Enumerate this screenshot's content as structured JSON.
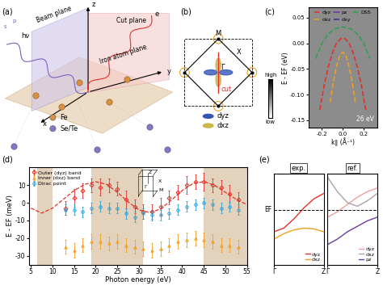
{
  "panel_a": {
    "label": "(a)",
    "axes": [
      "x",
      "y",
      "z"
    ],
    "beam_plane": "Beam plane",
    "cut_plane": "Cut plane",
    "photon": "hν",
    "electron": "e",
    "pol_s": "s",
    "pol_p": "p",
    "iron_plane": "Iron atom plane",
    "atoms": [
      {
        "name": "Fe",
        "color": "#d9913f"
      },
      {
        "name": "Se/Te",
        "color": "#8677c4"
      }
    ]
  },
  "panel_b": {
    "label": "(b)",
    "points": [
      "M",
      "X",
      "Γ"
    ],
    "cut": "cut",
    "orbitals": [
      {
        "name": "dyz",
        "color": "#3355b5"
      },
      {
        "name": "dxz",
        "color": "#c9b548"
      }
    ]
  },
  "chart_data": [
    {
      "label": "(c)",
      "type": "line",
      "x_label": "k∥ (Å⁻¹)",
      "y_label": "E - EF (eV)",
      "xlim": [
        -0.33,
        0.33
      ],
      "ylim": [
        -0.165,
        0.07
      ],
      "xticks": [
        {
          "value": -0.2,
          "label": "-0.2"
        },
        {
          "value": 0.0,
          "label": "0.0"
        },
        {
          "value": 0.2,
          "label": "0.2"
        }
      ],
      "yticks": [
        {
          "value": 0.05,
          "label": "0.05"
        },
        {
          "value": 0.0,
          "label": "0.00"
        },
        {
          "value": -0.05,
          "label": "-0.05"
        },
        {
          "value": -0.1,
          "label": "-0.10"
        },
        {
          "value": -0.15,
          "label": "-0.15"
        }
      ],
      "annotation": "26 eV",
      "colorbar": {
        "labels": [
          "high",
          "low"
        ]
      },
      "legend": "upper center",
      "series": [
        {
          "name": "dyz",
          "color": "#e0322a",
          "line_style": "dashed",
          "x": [
            -0.22,
            -0.18,
            -0.14,
            -0.1,
            -0.06,
            -0.02,
            0.0,
            0.02,
            0.06,
            0.1,
            0.14,
            0.18,
            0.22
          ],
          "values": [
            -0.13,
            -0.084,
            -0.047,
            -0.019,
            0.0,
            0.009,
            0.01,
            0.009,
            0.0,
            -0.019,
            -0.047,
            -0.084,
            -0.13
          ]
        },
        {
          "name": "dxz",
          "color": "#f0a020",
          "line_style": "dashed",
          "x": [
            -0.12,
            -0.09,
            -0.06,
            -0.03,
            0.0,
            0.03,
            0.06,
            0.09,
            0.12
          ],
          "values": [
            -0.115,
            -0.075,
            -0.045,
            -0.024,
            -0.017,
            -0.024,
            -0.045,
            -0.075,
            -0.115
          ]
        },
        {
          "name": "pz",
          "color": "#6a3d9a",
          "line_style": "solid",
          "x": [],
          "values": []
        },
        {
          "name": "dxy",
          "color": "#2040a0",
          "line_style": "dashdot",
          "x": [],
          "values": []
        },
        {
          "name": "DSS",
          "color": "#30a050",
          "line_style": "dashed",
          "x": [
            -0.26,
            -0.2,
            -0.14,
            -0.08,
            0.0,
            0.08,
            0.14,
            0.2,
            0.26
          ],
          "values": [
            -0.03,
            0.0,
            0.018,
            0.028,
            0.032,
            0.028,
            0.018,
            0.0,
            -0.03
          ]
        }
      ]
    },
    {
      "label": "(d)",
      "type": "scatter",
      "x_label": "Photon energy (eV)",
      "y_label": "E - EF (meV)",
      "xlim": [
        4.5,
        55
      ],
      "ylim": [
        -35,
        20
      ],
      "xticks": [
        5,
        10,
        15,
        20,
        25,
        30,
        35,
        40,
        45,
        50,
        55
      ],
      "yticks": [
        -30,
        -20,
        -10,
        0,
        10
      ],
      "legend": "upper left",
      "shaded_ranges": [
        [
          6.5,
          10
        ],
        [
          19,
          31
        ],
        [
          45,
          55
        ]
      ],
      "shade_color": "#e3d3bd",
      "inset_labels": [
        "Γ",
        "Z",
        "M",
        "X"
      ],
      "fit": {
        "color": "#e0322a",
        "line_style": "dashed",
        "x": [
          5,
          7.5,
          10,
          12.5,
          15,
          17.5,
          20,
          22.5,
          25,
          27.5,
          30,
          32.5,
          35,
          37.5,
          40,
          42.5,
          45,
          47.5,
          50,
          52.5,
          55
        ],
        "values": [
          -3,
          -5.8,
          -3,
          2,
          7,
          10.5,
          12,
          10.5,
          6,
          0.5,
          -4,
          -5.5,
          -3.5,
          1.5,
          7,
          11,
          12,
          10,
          6,
          2,
          -1
        ]
      },
      "series": [
        {
          "name": "Outer (dyz) band",
          "color": "#e0322a",
          "marker": "diamond",
          "x": [
            13,
            15,
            17,
            19,
            21,
            23,
            25,
            27,
            29,
            31,
            33,
            35,
            37,
            39,
            41,
            43,
            45,
            47,
            49,
            51,
            53
          ],
          "values": [
            -3,
            3,
            7,
            10,
            9,
            10,
            8,
            2,
            -2,
            -5,
            -5,
            -2,
            3,
            6,
            10,
            12,
            12,
            10,
            9,
            5,
            2
          ],
          "errors": [
            4,
            5,
            4,
            4,
            5,
            4,
            4,
            5,
            4,
            4,
            4,
            5,
            4,
            4,
            5,
            4,
            5,
            4,
            4,
            5,
            4
          ]
        },
        {
          "name": "Inner (dxz) band",
          "color": "#f0a020",
          "marker": "triangle",
          "x": [
            13,
            15,
            17,
            19,
            21,
            23,
            25,
            27,
            29,
            31,
            33,
            35,
            37,
            39,
            41,
            43,
            45,
            47,
            49,
            51,
            53
          ],
          "values": [
            -25,
            -27,
            -24,
            -22,
            -22,
            -23,
            -22,
            -24,
            -25,
            -26,
            -27,
            -26,
            -24,
            -22,
            -21,
            -20,
            -21,
            -22,
            -24,
            -24,
            -25
          ],
          "errors": [
            4,
            4,
            4,
            4,
            4,
            4,
            4,
            4,
            4,
            4,
            4,
            4,
            4,
            4,
            4,
            4,
            4,
            4,
            4,
            4,
            4
          ]
        },
        {
          "name": "Dirac point",
          "color": "#2e9fd8",
          "marker": "circle",
          "x": [
            13,
            15,
            17,
            19,
            21,
            23,
            25,
            27,
            29,
            31,
            33,
            35,
            37,
            39,
            41,
            43,
            45,
            47,
            49,
            51,
            53
          ],
          "values": [
            -4,
            -4,
            -5,
            -3,
            -2,
            -3,
            -3,
            -6,
            -8,
            -6,
            -7,
            -7,
            -6,
            -4,
            -2,
            -1,
            0,
            -1,
            -3,
            -2,
            -4
          ],
          "errors": [
            3,
            3,
            3,
            3,
            3,
            3,
            3,
            3,
            3,
            3,
            3,
            3,
            3,
            3,
            3,
            3,
            3,
            3,
            3,
            3,
            3
          ]
        }
      ]
    }
  ],
  "panel_e": {
    "label": "(e)",
    "x_labels": [
      "Γ",
      "Z"
    ],
    "ef_label": "EF",
    "ylim": [
      -1.5,
      1.0
    ],
    "x": [
      0.0,
      0.2,
      0.4,
      0.6,
      0.8,
      1.0
    ],
    "panels": [
      {
        "title": "exp.",
        "series": [
          {
            "name": "dyz",
            "color": "#e0322a",
            "values": [
              -0.6,
              -0.5,
              -0.25,
              0.05,
              0.3,
              0.45
            ]
          },
          {
            "name": "dxz",
            "color": "#f0a020",
            "values": [
              -0.8,
              -0.65,
              -0.55,
              -0.5,
              -0.52,
              -0.6
            ]
          }
        ]
      },
      {
        "title": "ref.",
        "series": [
          {
            "name": "dyz",
            "color": "#f4a0a0",
            "values": [
              -0.2,
              -0.05,
              0.15,
              0.35,
              0.5,
              0.6
            ]
          },
          {
            "name": "dxz",
            "color": "#b0a0a8",
            "values": [
              0.9,
              0.5,
              0.2,
              0.1,
              0.25,
              0.45
            ]
          },
          {
            "name": "pz",
            "color": "#6a3d9a",
            "values": [
              -0.95,
              -0.8,
              -0.6,
              -0.45,
              -0.3,
              -0.2
            ]
          }
        ]
      }
    ]
  }
}
